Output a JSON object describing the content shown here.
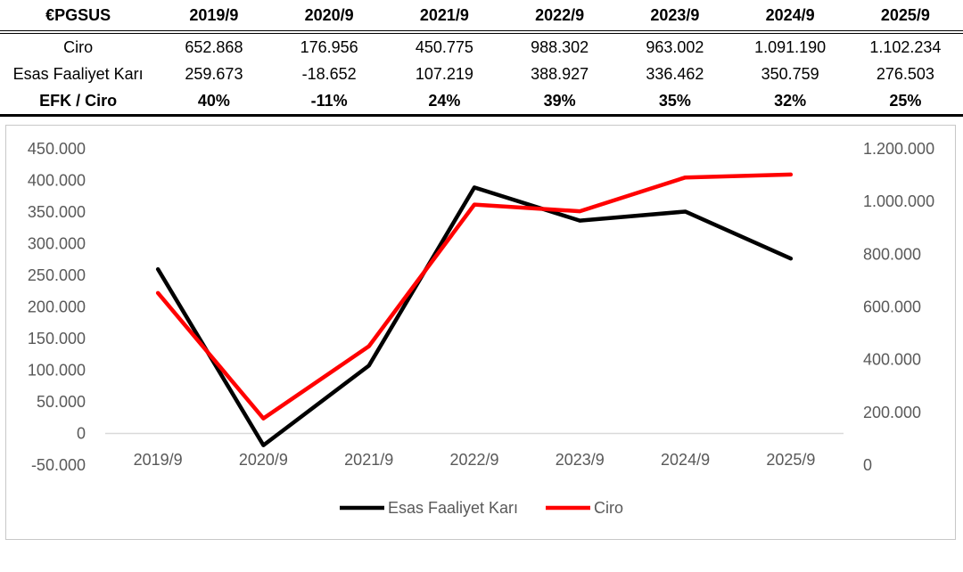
{
  "table": {
    "header": [
      "€PGSUS",
      "2019/9",
      "2020/9",
      "2021/9",
      "2022/9",
      "2023/9",
      "2024/9",
      "2025/9"
    ],
    "rows": [
      {
        "label": "Ciro",
        "bold": false,
        "values": [
          "652.868",
          "176.956",
          "450.775",
          "988.302",
          "963.002",
          "1.091.190",
          "1.102.234"
        ]
      },
      {
        "label": "Esas Faaliyet Karı",
        "bold": false,
        "values": [
          "259.673",
          "-18.652",
          "107.219",
          "388.927",
          "336.462",
          "350.759",
          "276.503"
        ]
      },
      {
        "label": "EFK / Ciro",
        "bold": true,
        "values": [
          "40%",
          "-11%",
          "24%",
          "39%",
          "35%",
          "32%",
          "25%"
        ]
      }
    ]
  },
  "chart_data": {
    "type": "line",
    "categories": [
      "2019/9",
      "2020/9",
      "2021/9",
      "2022/9",
      "2023/9",
      "2024/9",
      "2025/9"
    ],
    "series": [
      {
        "name": "Esas Faaliyet Karı",
        "axis": "left",
        "color": "#000000",
        "values": [
          259673,
          -18652,
          107219,
          388927,
          336462,
          350759,
          276503
        ]
      },
      {
        "name": "Ciro",
        "axis": "right",
        "color": "#ff0000",
        "values": [
          652868,
          176956,
          450775,
          988302,
          963002,
          1091190,
          1102234
        ]
      }
    ],
    "left_axis": {
      "min": -50000,
      "max": 450000,
      "step": 50000,
      "tick_labels": [
        "-50.000",
        "0",
        "50.000",
        "100.000",
        "150.000",
        "200.000",
        "250.000",
        "300.000",
        "350.000",
        "400.000",
        "450.000"
      ]
    },
    "right_axis": {
      "min": 0,
      "max": 1200000,
      "step": 200000,
      "tick_labels": [
        "0",
        "200.000",
        "400.000",
        "600.000",
        "800.000",
        "1.000.000",
        "1.200.000"
      ]
    },
    "legend": {
      "position": "bottom",
      "items": [
        "Esas Faaliyet Karı",
        "Ciro"
      ]
    },
    "grid": false
  }
}
